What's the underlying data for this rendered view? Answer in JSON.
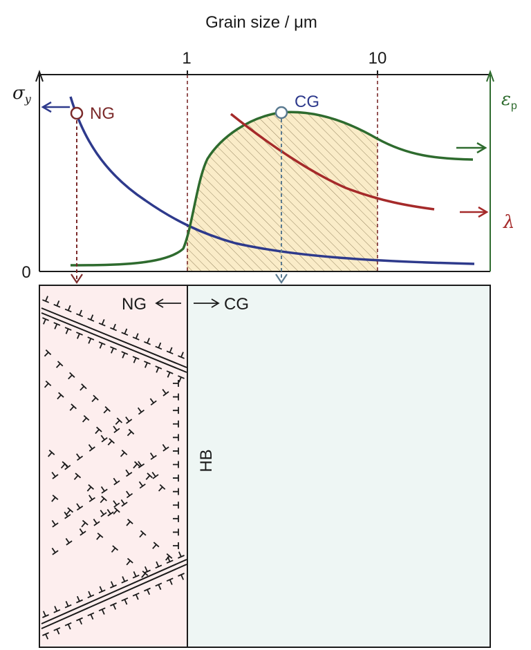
{
  "top_axis": {
    "title": "Grain size / μm",
    "ticks": [
      "1",
      "10"
    ]
  },
  "left_axis": {
    "label": "σ",
    "label_sub": "y",
    "zero": "0"
  },
  "right_axis": {
    "label": "ε",
    "label_sub": "p",
    "lambda": "λ"
  },
  "markers": {
    "ng": "NG",
    "cg": "CG"
  },
  "lower_panel": {
    "ng_label": "NG",
    "cg_label": "CG",
    "boundary_label": "HB"
  },
  "colors": {
    "sigma_curve": "#2e3a8c",
    "epsilon_curve": "#2e6b2e",
    "lambda_curve": "#a52a2a",
    "ng_marker": "#7b2a2a",
    "cg_marker": "#5a7a90",
    "hatch_fill": "#faecc8",
    "ng_region": "#fdeeee",
    "cg_region": "#eef6f4"
  }
}
